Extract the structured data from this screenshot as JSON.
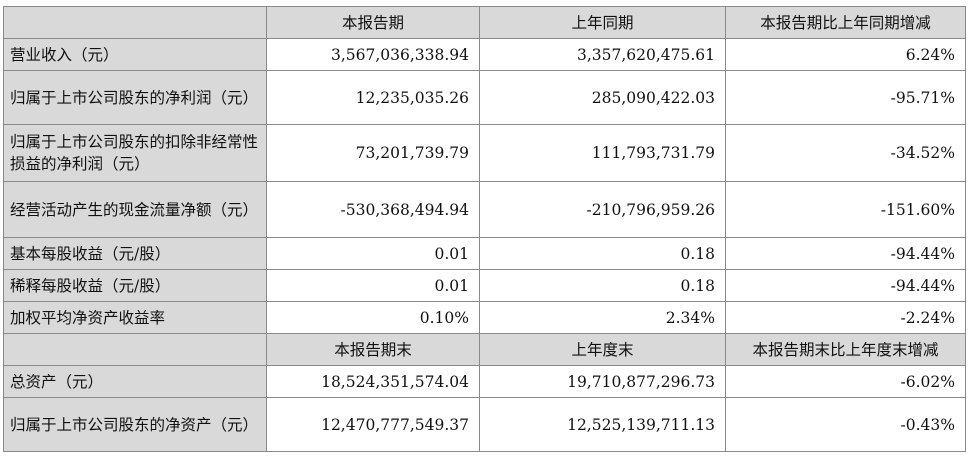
{
  "header1": {
    "col1": "本报告期",
    "col2": "上年同期",
    "col3": "本报告期比上年同期增减"
  },
  "rows1": [
    {
      "label": "营业收入（元）",
      "current": "3,567,036,338.94",
      "prior": "3,357,620,475.61",
      "change": "6.24%"
    },
    {
      "label": "归属于上市公司股东的净利润（元）",
      "current": "12,235,035.26",
      "prior": "285,090,422.03",
      "change": "-95.71%"
    },
    {
      "label": "归属于上市公司股东的扣除非经常性损益的净利润（元）",
      "current": "73,201,739.79",
      "prior": "111,793,731.79",
      "change": "-34.52%"
    },
    {
      "label": "经营活动产生的现金流量净额（元）",
      "current": "-530,368,494.94",
      "prior": "-210,796,959.26",
      "change": "-151.60%"
    },
    {
      "label": "基本每股收益（元/股）",
      "current": "0.01",
      "prior": "0.18",
      "change": "-94.44%"
    },
    {
      "label": "稀释每股收益（元/股）",
      "current": "0.01",
      "prior": "0.18",
      "change": "-94.44%"
    },
    {
      "label": "加权平均净资产收益率",
      "current": "0.10%",
      "prior": "2.34%",
      "change": "-2.24%"
    }
  ],
  "header2": {
    "col1": "本报告期末",
    "col2": "上年度末",
    "col3": "本报告期末比上年度末增减"
  },
  "rows2": [
    {
      "label": "总资产（元）",
      "current": "18,524,351,574.04",
      "prior": "19,710,877,296.73",
      "change": "-6.02%"
    },
    {
      "label": "归属于上市公司股东的净资产（元）",
      "current": "12,470,777,549.37",
      "prior": "12,525,139,711.13",
      "change": "-0.43%"
    }
  ]
}
